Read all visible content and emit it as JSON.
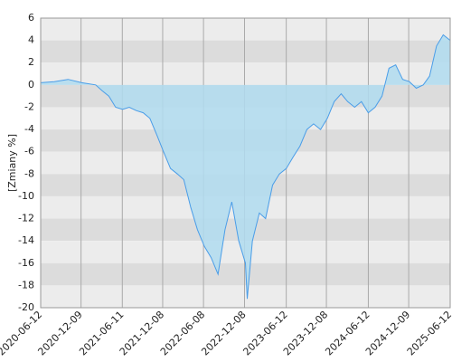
{
  "chart_data": {
    "type": "area",
    "y_label": "[Zmiany %]",
    "x": [
      "2020-06-12",
      "2020-08-12",
      "2020-10-12",
      "2020-12-12",
      "2021-02-12",
      "2021-03-12",
      "2021-04-12",
      "2021-05-12",
      "2021-06-12",
      "2021-07-12",
      "2021-08-12",
      "2021-09-12",
      "2021-10-12",
      "2021-11-12",
      "2021-12-12",
      "2022-01-12",
      "2022-02-12",
      "2022-03-12",
      "2022-04-12",
      "2022-05-12",
      "2022-06-12",
      "2022-07-12",
      "2022-08-12",
      "2022-09-12",
      "2022-10-12",
      "2022-11-12",
      "2022-12-12",
      "2022-12-20",
      "2023-01-12",
      "2023-02-12",
      "2023-03-12",
      "2023-04-12",
      "2023-05-12",
      "2023-06-12",
      "2023-07-12",
      "2023-08-12",
      "2023-09-12",
      "2023-10-12",
      "2023-11-12",
      "2023-12-12",
      "2024-01-12",
      "2024-02-12",
      "2024-03-12",
      "2024-04-12",
      "2024-05-12",
      "2024-06-12",
      "2024-07-12",
      "2024-08-12",
      "2024-09-12",
      "2024-10-12",
      "2024-11-12",
      "2024-12-12",
      "2025-01-12",
      "2025-02-12",
      "2025-03-12",
      "2025-04-12",
      "2025-05-12",
      "2025-06-12"
    ],
    "values": [
      0.2,
      0.3,
      0.5,
      0.2,
      0,
      -0.5,
      -1,
      -2,
      -2.2,
      -2,
      -2.3,
      -2.5,
      -3,
      -4.5,
      -6,
      -7.5,
      -8,
      -8.5,
      -11,
      -13,
      -14.5,
      -15.5,
      -17,
      -13,
      -10.5,
      -14,
      -16,
      -19.2,
      -14,
      -11.5,
      -12,
      -9,
      -8,
      -7.5,
      -6.5,
      -5.5,
      -4,
      -3.5,
      -4,
      -3,
      -1.5,
      -0.8,
      -1.5,
      -2,
      -1.5,
      -2.5,
      -2,
      -1,
      1.5,
      1.8,
      0.5,
      0.3,
      -0.3,
      0,
      0.8,
      3.5,
      4.5,
      4
    ],
    "color": "#4a9de8",
    "fill": "#b0dcf0",
    "xlim": [
      "2020-06-12",
      "2025-06-12"
    ],
    "xticks": [
      "2020-06-12",
      "2020-12-09",
      "2021-06-11",
      "2021-12-08",
      "2022-06-08",
      "2022-12-08",
      "2023-06-12",
      "2023-12-08",
      "2024-06-12",
      "2024-12-09",
      "2025-06-12"
    ],
    "ylim": [
      -20,
      6
    ],
    "yticks": [
      6,
      4,
      2,
      0,
      -2,
      -4,
      -6,
      -8,
      -10,
      -12,
      -14,
      -16,
      -18,
      -20
    ],
    "grid": true
  }
}
